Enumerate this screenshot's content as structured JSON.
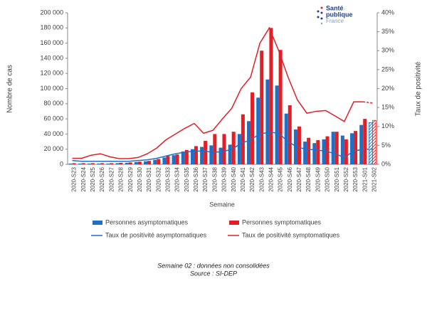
{
  "chart_data": {
    "type": "bar",
    "logo": {
      "line1": "Santé",
      "line2": "publique",
      "line3": "France"
    },
    "ylabel": "Nombre de cas",
    "y2label": "Taux de positivité",
    "xlabel": "Semaine",
    "notes": [
      "Semaine 02 : données non consolidées",
      "Source : SI-DEP"
    ],
    "categories": [
      "2020-S23",
      "2020-S24",
      "2020-S25",
      "2020-S26",
      "2020-S27",
      "2020-S28",
      "2020-S29",
      "2020-S30",
      "2020-S31",
      "2020-S32",
      "2020-S33",
      "2020-S34",
      "2020-S35",
      "2020-S36",
      "2020-S37",
      "2020-S38",
      "2020-S39",
      "2020-S40",
      "2020-S41",
      "2020-S42",
      "2020-S43",
      "2020-S44",
      "2020-S45",
      "2020-S46",
      "2020-S47",
      "2020-S48",
      "2020-S49",
      "2020-S50",
      "2020-S51",
      "2020-S52",
      "2020-S53",
      "2021-S01",
      "2021-S02"
    ],
    "provisional_last": true,
    "series": [
      {
        "name": "Personnes asymptomatiques",
        "type": "bar",
        "color": "#1f6fc5",
        "values": [
          1000,
          1000,
          1000,
          1000,
          1000,
          1500,
          2000,
          3000,
          4000,
          6000,
          9000,
          12000,
          17000,
          20000,
          23000,
          25000,
          22000,
          26000,
          40000,
          57000,
          88000,
          112000,
          104000,
          67000,
          46000,
          30000,
          28000,
          33000,
          43000,
          38000,
          41000,
          52000,
          55000
        ]
      },
      {
        "name": "Personnes symptomatiques",
        "type": "bar",
        "color": "#e31e24",
        "values": [
          1500,
          1500,
          1500,
          1500,
          1500,
          2000,
          2500,
          3500,
          4500,
          7000,
          11000,
          13000,
          19000,
          24000,
          31000,
          40000,
          40000,
          43000,
          66000,
          95000,
          150000,
          180000,
          151000,
          78000,
          50000,
          35000,
          32000,
          37000,
          43000,
          33000,
          44000,
          60000,
          58000
        ]
      },
      {
        "name": "Taux de positivité asymptomatiques",
        "type": "line",
        "axis": "y2",
        "color": "#1f6fc5",
        "values": [
          1,
          0.8,
          0.8,
          0.8,
          0.8,
          0.8,
          0.8,
          1,
          1.2,
          1.6,
          2.2,
          2.8,
          3.2,
          3.5,
          3.5,
          3.2,
          3.3,
          4,
          5.5,
          6.5,
          8,
          8.5,
          8.2,
          6,
          4.5,
          4,
          3.8,
          3.5,
          2.8,
          1.8,
          3.5,
          4,
          4
        ]
      },
      {
        "name": "Taux de positivité symptomatiques",
        "type": "line",
        "axis": "y2",
        "color": "#e31e24",
        "values": [
          1.6,
          1.6,
          2.4,
          2.8,
          2,
          1.5,
          1.5,
          1.8,
          2.8,
          4.3,
          6.5,
          8,
          9.5,
          10.8,
          8.2,
          9,
          12,
          14.8,
          20,
          23,
          32,
          36,
          30,
          23,
          17,
          13.5,
          14,
          14.2,
          12.8,
          11.3,
          16.5,
          16.5,
          16.2
        ]
      }
    ],
    "ylim": [
      0,
      200000
    ],
    "yticks": [
      {
        "value": 0,
        "label": "0"
      },
      {
        "value": 20000,
        "label": "20 000"
      },
      {
        "value": 40000,
        "label": "40 000"
      },
      {
        "value": 60000,
        "label": "60 000"
      },
      {
        "value": 80000,
        "label": "80 000"
      },
      {
        "value": 100000,
        "label": "100 000"
      },
      {
        "value": 120000,
        "label": "120 000"
      },
      {
        "value": 140000,
        "label": "140 000"
      },
      {
        "value": 160000,
        "label": "160 000"
      },
      {
        "value": 180000,
        "label": "180 000"
      },
      {
        "value": 200000,
        "label": "200 000"
      }
    ],
    "y2lim": [
      0,
      40
    ],
    "y2ticks": [
      {
        "value": 0,
        "label": "0%"
      },
      {
        "value": 5,
        "label": "5%"
      },
      {
        "value": 10,
        "label": "10%"
      },
      {
        "value": 15,
        "label": "15%"
      },
      {
        "value": 20,
        "label": "20%"
      },
      {
        "value": 25,
        "label": "25%"
      },
      {
        "value": 30,
        "label": "30%"
      },
      {
        "value": 35,
        "label": "35%"
      },
      {
        "value": 40,
        "label": "40%"
      }
    ]
  }
}
